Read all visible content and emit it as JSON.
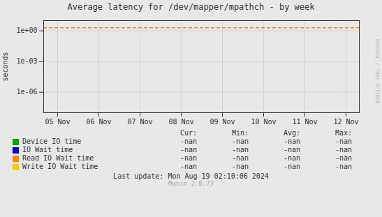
{
  "chart_data": {
    "type": "line",
    "title": "Average latency for /dev/mapper/mpathch - by week",
    "y_label": "seconds",
    "categories": [
      "05 Nov",
      "06 Nov",
      "07 Nov",
      "08 Nov",
      "09 Nov",
      "10 Nov",
      "11 Nov",
      "12 Nov"
    ],
    "series": [
      {
        "name": "Device IO time",
        "color": "#00aa00",
        "values": [
          null,
          null,
          null,
          null,
          null,
          null,
          null,
          null
        ],
        "legend_values": [
          "-nan",
          "-nan",
          "-nan",
          "-nan"
        ]
      },
      {
        "name": "IO Wait time",
        "color": "#0000cc",
        "values": [
          null,
          null,
          null,
          null,
          null,
          null,
          null,
          null
        ],
        "legend_values": [
          "-nan",
          "-nan",
          "-nan",
          "-nan"
        ]
      },
      {
        "name": "Read IO Wait time",
        "color": "#ff8800",
        "values": [
          null,
          null,
          null,
          null,
          null,
          null,
          null,
          null
        ],
        "legend_values": [
          "-nan",
          "-nan",
          "-nan",
          "-nan"
        ]
      },
      {
        "name": "Write IO Wait time",
        "color": "#ffcc00",
        "values": [
          null,
          null,
          null,
          null,
          null,
          null,
          null,
          null
        ],
        "legend_values": [
          "-nan",
          "-nan",
          "-nan",
          "-nan"
        ]
      }
    ],
    "legend_columns": [
      "Cur:",
      "Min:",
      "Avg:",
      "Max:"
    ],
    "hlines": [
      {
        "y": 2.0,
        "color": "#ff8800",
        "line_style": "dashed"
      }
    ],
    "log": "y",
    "ylim": [
      1e-08,
      10
    ],
    "yticks": [
      {
        "value": 1e-06,
        "label": "1e-06"
      },
      {
        "value": 0.001,
        "label": "1e-03"
      },
      {
        "value": 1,
        "label": "1e+00"
      }
    ],
    "grid": true,
    "annotations": [
      "RRDTOOL / TOBI OETIKER",
      "Last update: Mon Aug 19 02:10:06 2024",
      "Munin 2.0.73"
    ]
  }
}
